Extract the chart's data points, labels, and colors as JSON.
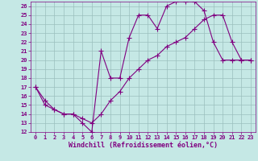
{
  "xlabel": "Windchill (Refroidissement éolien,°C)",
  "xlim": [
    -0.5,
    23.5
  ],
  "ylim": [
    12,
    26.5
  ],
  "xticks": [
    0,
    1,
    2,
    3,
    4,
    5,
    6,
    7,
    8,
    9,
    10,
    11,
    12,
    13,
    14,
    15,
    16,
    17,
    18,
    19,
    20,
    21,
    22,
    23
  ],
  "yticks": [
    12,
    13,
    14,
    15,
    16,
    17,
    18,
    19,
    20,
    21,
    22,
    23,
    24,
    25,
    26
  ],
  "line1_x": [
    0,
    1,
    2,
    3,
    4,
    5,
    6,
    7,
    8,
    9,
    10,
    11,
    12,
    13,
    14,
    15,
    16,
    17,
    18,
    19,
    20,
    21,
    22,
    23
  ],
  "line1_y": [
    17,
    15,
    14.5,
    14,
    14,
    13,
    12,
    21,
    18,
    18,
    22.5,
    25,
    25,
    23.5,
    26,
    26.5,
    26.5,
    26.5,
    25.5,
    22,
    20,
    20,
    20,
    20
  ],
  "line2_x": [
    0,
    1,
    2,
    3,
    4,
    5,
    6,
    7,
    8,
    9,
    10,
    11,
    12,
    13,
    14,
    15,
    16,
    17,
    18,
    19,
    20,
    21,
    22,
    23
  ],
  "line2_y": [
    17,
    15.5,
    14.5,
    14,
    14,
    13.5,
    13,
    14,
    15.5,
    16.5,
    18,
    19,
    20,
    20.5,
    21.5,
    22,
    22.5,
    23.5,
    24.5,
    25,
    25,
    22,
    20,
    20
  ],
  "line_color": "#800080",
  "bg_color": "#c5e8e5",
  "grid_color": "#9bbfbd",
  "marker": "+",
  "markersize": 4,
  "linewidth": 0.8,
  "tick_fontsize": 5,
  "xlabel_fontsize": 6
}
